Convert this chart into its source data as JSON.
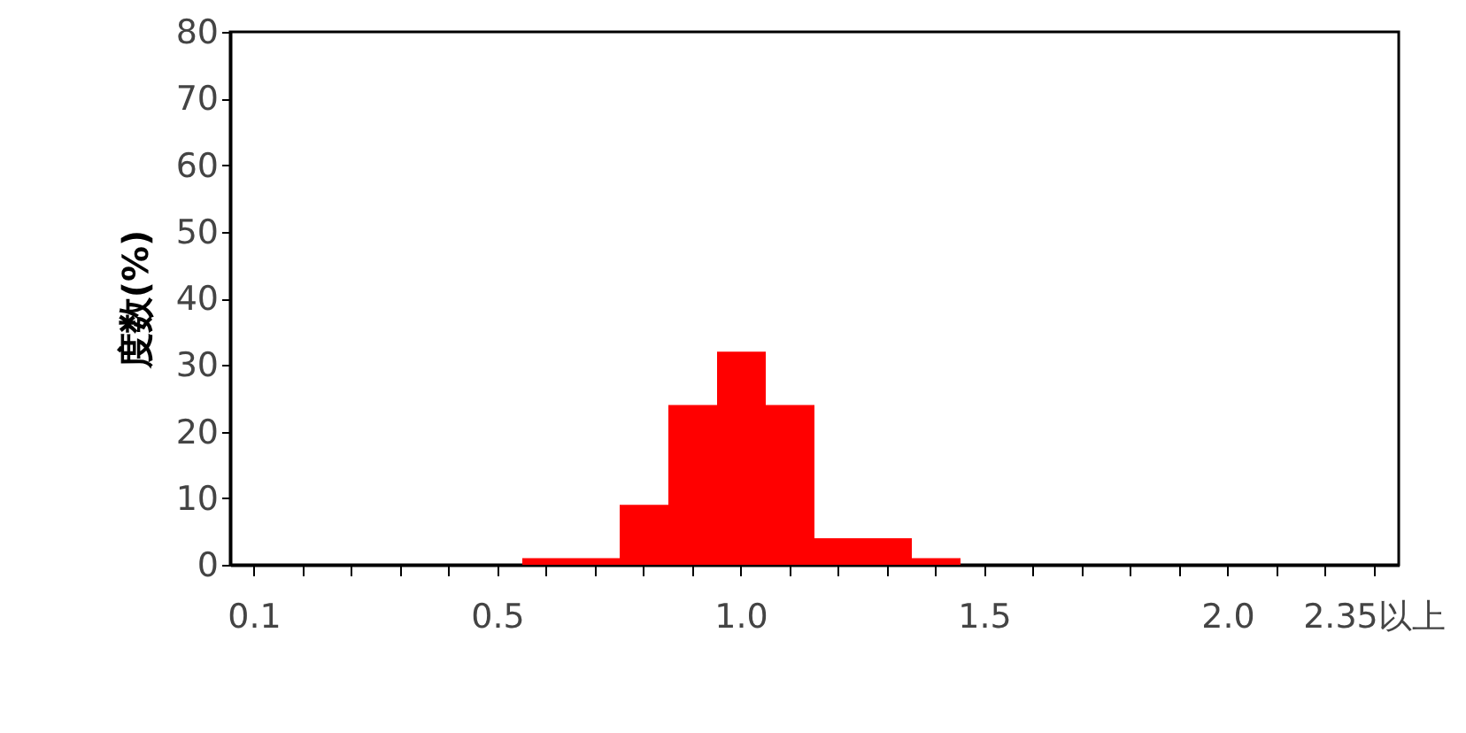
{
  "chart_data": {
    "type": "bar",
    "ylabel": "度数(%)",
    "categories": [
      "0.1",
      null,
      null,
      null,
      null,
      "0.5",
      null,
      null,
      null,
      null,
      "1.0",
      null,
      null,
      null,
      null,
      "1.5",
      null,
      null,
      null,
      null,
      "2.0",
      null,
      null,
      "2.35以上"
    ],
    "values": [
      0,
      0,
      0,
      0,
      0,
      0,
      1,
      1,
      9,
      24,
      32,
      24,
      4,
      4,
      1,
      0,
      0,
      0,
      0,
      0,
      0,
      0,
      0,
      0
    ],
    "color": "#ff0000",
    "ylim": [
      0,
      80
    ],
    "yticks": [
      0,
      10,
      20,
      30,
      40,
      50,
      60,
      70,
      80
    ],
    "grid": false
  }
}
